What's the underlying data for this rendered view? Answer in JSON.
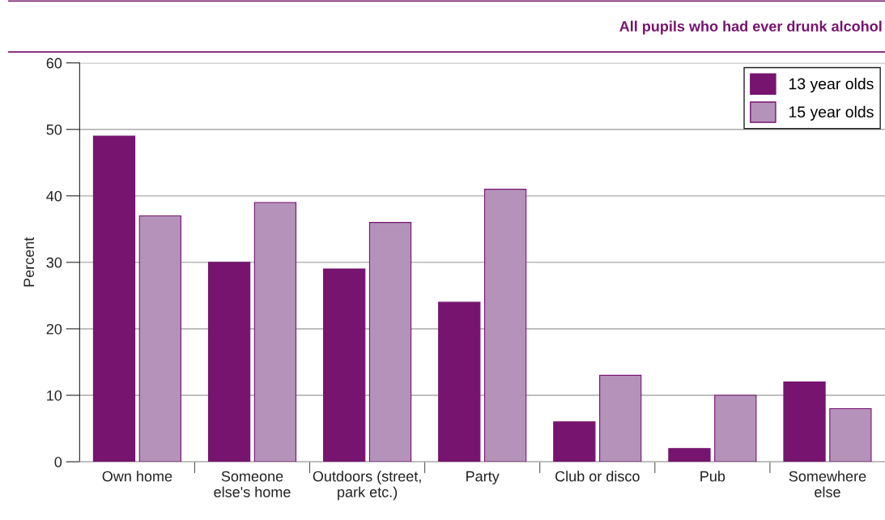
{
  "chart_data": {
    "type": "bar",
    "title": "All pupils who had ever drunk alcohol",
    "ylabel": "Percent",
    "categories": [
      "Own home",
      "Someone\nelse's home",
      "Outdoors (street,\npark etc.)",
      "Party",
      "Club or disco",
      "Pub",
      "Somewhere\nelse"
    ],
    "series": [
      {
        "name": "13 year olds",
        "color": "#76146f",
        "values": [
          49,
          30,
          29,
          24,
          6,
          2,
          12
        ]
      },
      {
        "name": "15 year olds",
        "color": "#b592ba",
        "values": [
          37,
          39,
          36,
          41,
          13,
          10,
          8
        ]
      }
    ],
    "ylim": [
      0,
      60
    ],
    "yticks": [
      0,
      10,
      20,
      30,
      40,
      50,
      60
    ],
    "grid": "y",
    "legend": "top right"
  }
}
